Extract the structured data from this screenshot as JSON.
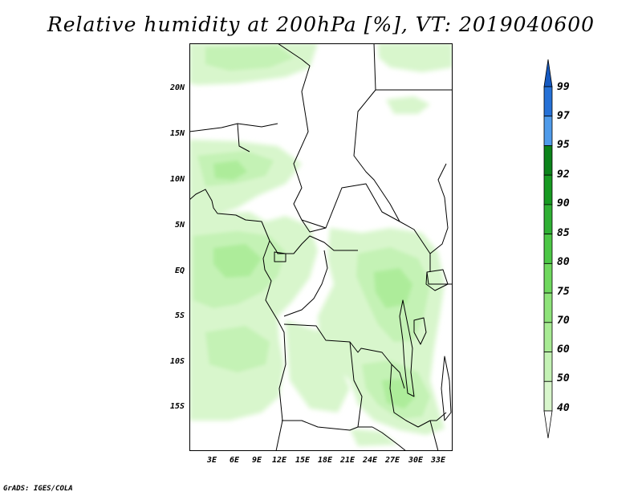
{
  "chart_data": {
    "type": "heatmap",
    "title": "Relative humidity at 200hPa [%], VT: 2019040600",
    "lat_ticks": [
      "20N",
      "15N",
      "10N",
      "5N",
      "EQ",
      "5S",
      "10S",
      "15S"
    ],
    "lon_ticks": [
      "3E",
      "6E",
      "9E",
      "12E",
      "15E",
      "18E",
      "21E",
      "24E",
      "27E",
      "30E",
      "33E"
    ],
    "lon_range": [
      0.0,
      35.0
    ],
    "lat_range": [
      -20.0,
      24.5
    ],
    "colorbar": {
      "levels": [
        "40",
        "50",
        "60",
        "70",
        "75",
        "80",
        "85",
        "90",
        "92",
        "95",
        "97",
        "99"
      ],
      "colors": [
        "#eefbea",
        "#d8f6cc",
        "#c4f2b5",
        "#a8eb94",
        "#8ee37a",
        "#6fd85e",
        "#4cc746",
        "#2fb034",
        "#179a21",
        "#0b831a",
        "#4f9bea",
        "#2671d6",
        "#1559c0"
      ],
      "orientation": "vertical",
      "position": "right"
    }
  },
  "credit": "GrADS: IGES/COLA"
}
